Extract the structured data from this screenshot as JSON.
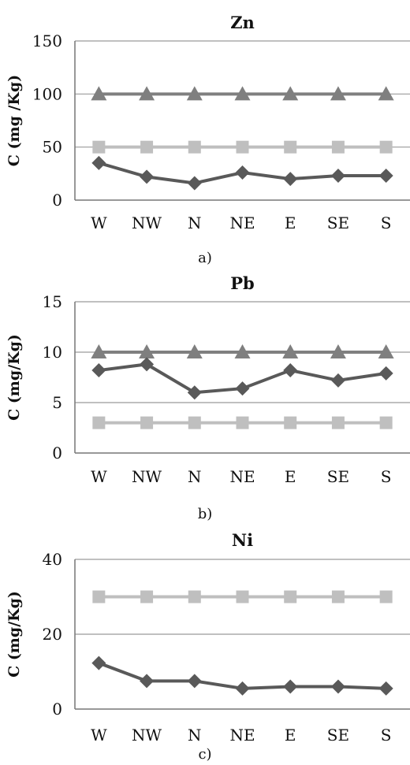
{
  "chart_data": [
    {
      "type": "line",
      "title": "Zn",
      "ylabel": "C (mg /Kg)",
      "caption": "a)",
      "categories": [
        "W",
        "NW",
        "N",
        "NE",
        "E",
        "SE",
        "S"
      ],
      "ylim": [
        0,
        150
      ],
      "yticks": [
        0,
        50,
        100,
        150
      ],
      "grid": true,
      "series": [
        {
          "values": [
            100,
            100,
            100,
            100,
            100,
            100,
            100
          ],
          "color": "#7f7f7f",
          "marker": "triangle"
        },
        {
          "values": [
            50,
            50,
            50,
            50,
            50,
            50,
            50
          ],
          "color": "#bfbfbf",
          "marker": "square"
        },
        {
          "values": [
            35,
            22,
            16,
            26,
            20,
            23,
            23
          ],
          "color": "#595959",
          "marker": "diamond"
        }
      ]
    },
    {
      "type": "line",
      "title": "Pb",
      "ylabel": "C (mg/Kg)",
      "caption": "b)",
      "categories": [
        "W",
        "NW",
        "N",
        "NE",
        "E",
        "SE",
        "S"
      ],
      "ylim": [
        0,
        15
      ],
      "yticks": [
        0,
        5,
        10,
        15
      ],
      "grid": true,
      "series": [
        {
          "values": [
            10,
            10,
            10,
            10,
            10,
            10,
            10
          ],
          "color": "#7f7f7f",
          "marker": "triangle"
        },
        {
          "values": [
            3,
            3,
            3,
            3,
            3,
            3,
            3
          ],
          "color": "#bfbfbf",
          "marker": "square"
        },
        {
          "values": [
            8.2,
            8.8,
            6.0,
            6.4,
            8.2,
            7.2,
            7.9
          ],
          "color": "#595959",
          "marker": "diamond"
        }
      ]
    },
    {
      "type": "line",
      "title": "Ni",
      "ylabel": "C (mg/Kg)",
      "caption": "c)",
      "categories": [
        "W",
        "NW",
        "N",
        "NE",
        "E",
        "SE",
        "S"
      ],
      "ylim": [
        0,
        40
      ],
      "yticks": [
        0,
        20,
        40
      ],
      "grid": true,
      "series": [
        {
          "values": [
            30,
            30,
            30,
            30,
            30,
            30,
            30
          ],
          "color": "#bfbfbf",
          "marker": "square"
        },
        {
          "values": [
            12.3,
            7.5,
            7.5,
            5.5,
            6.0,
            6.0,
            5.5
          ],
          "color": "#595959",
          "marker": "diamond"
        }
      ]
    }
  ]
}
